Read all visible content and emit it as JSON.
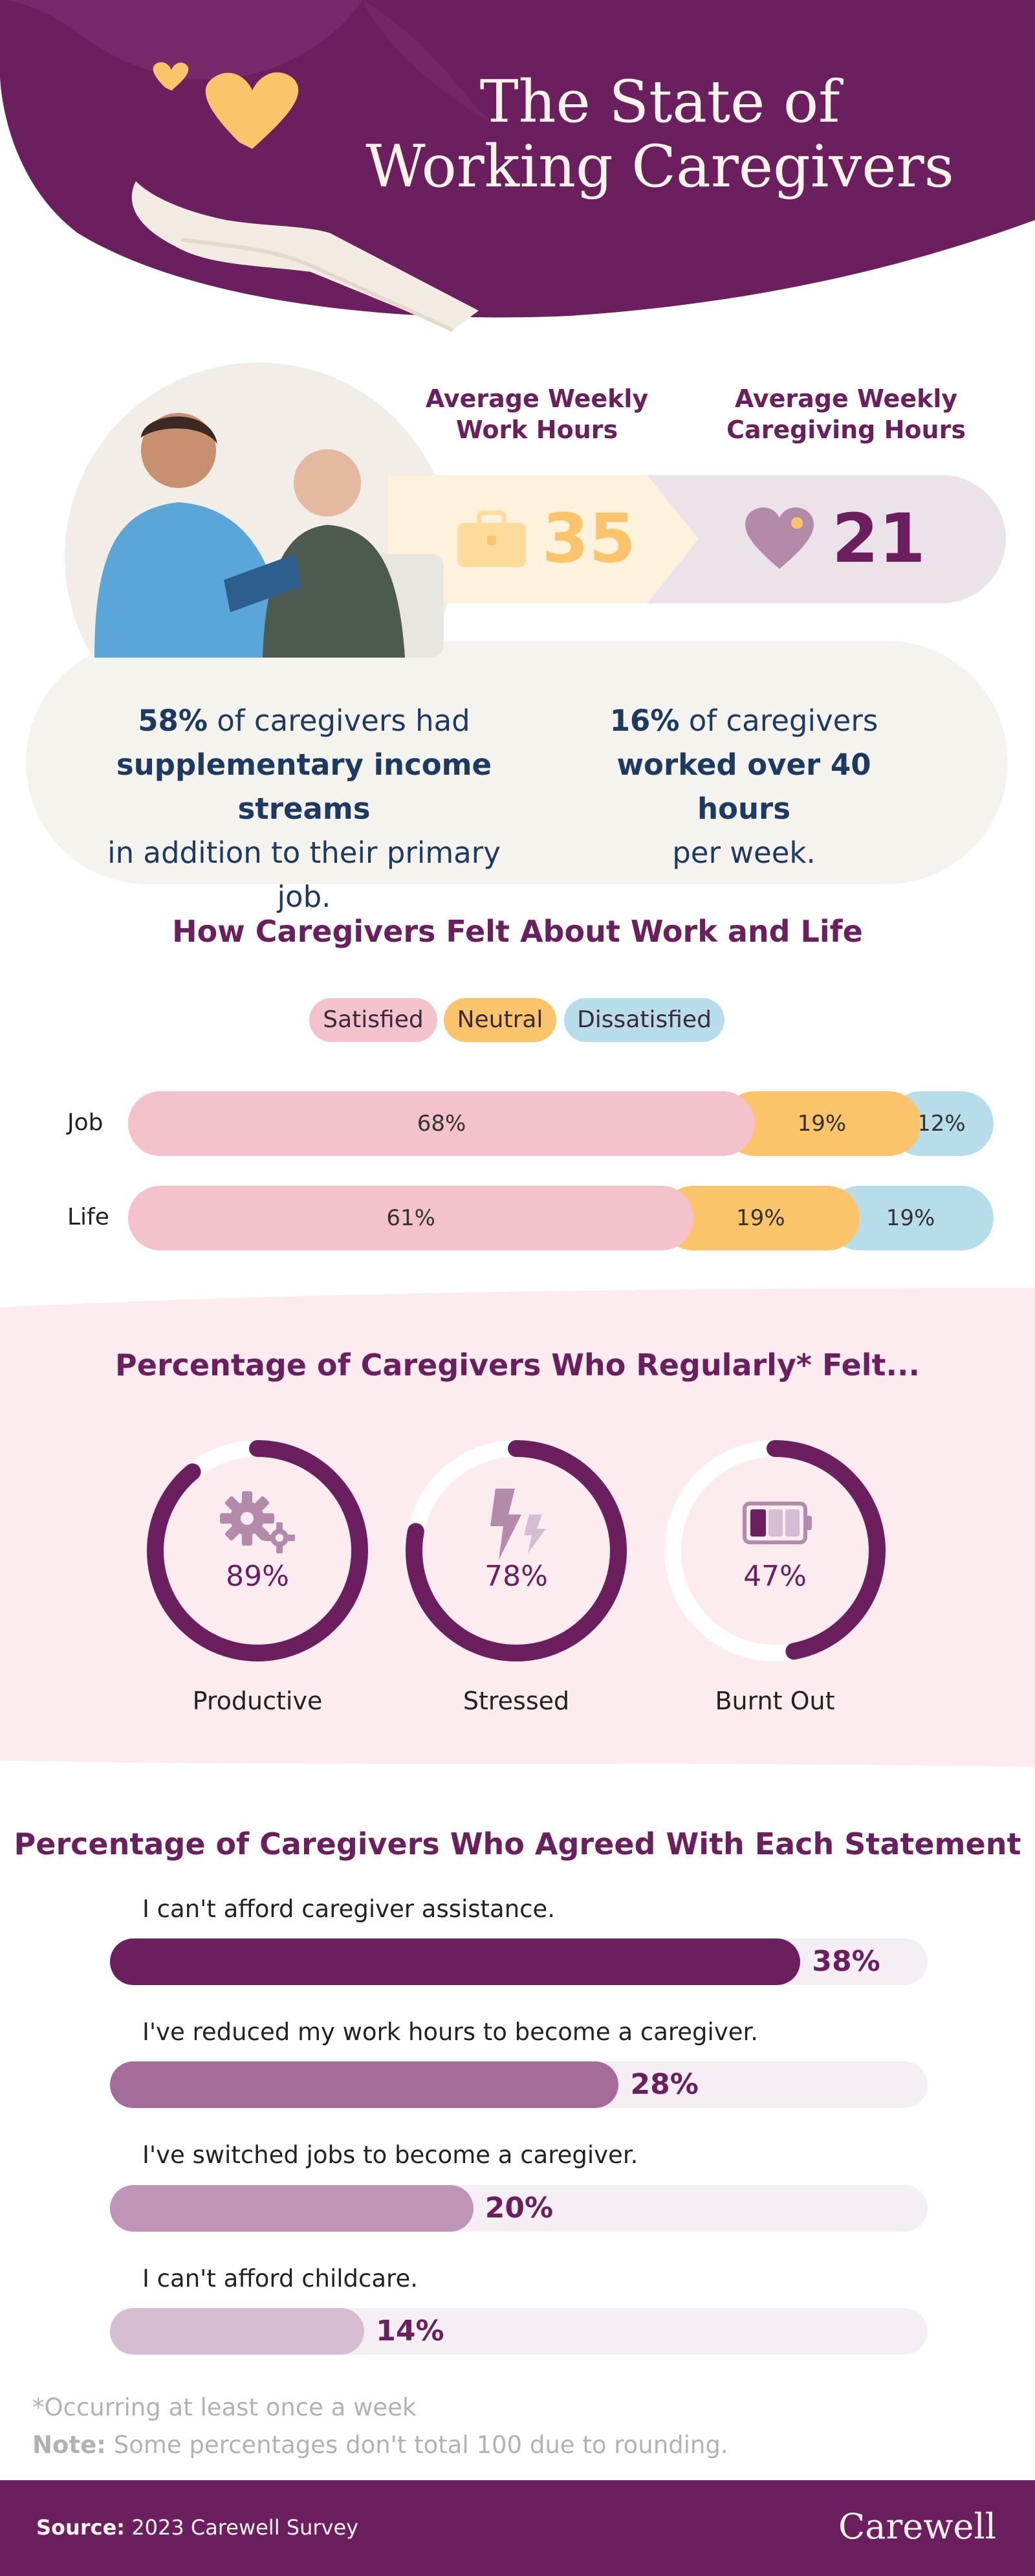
{
  "header": {
    "title_line1": "The State of",
    "title_line2": "Working Caregivers"
  },
  "stats": {
    "work": {
      "label_line1": "Average Weekly",
      "label_line2": "Work Hours",
      "value": "35",
      "icon": "briefcase-icon"
    },
    "caregiving": {
      "label_line1": "Average Weekly",
      "label_line2": "Caregiving Hours",
      "value": "21",
      "icon": "heart-icon"
    }
  },
  "callouts": {
    "left": {
      "pct": "58%",
      "text1": " of caregivers had",
      "bold": "supplementary income streams",
      "text2": "in addition to their primary job."
    },
    "right": {
      "pct": "16%",
      "text1": " of caregivers",
      "bold": "worked over 40 hours",
      "text2": "per week."
    }
  },
  "feelings": {
    "title": "How Caregivers Felt About Work and Life",
    "legend": [
      "Satisfied",
      "Neutral",
      "Dissatisfied"
    ],
    "colors": {
      "satisfied": "#f4c2cb",
      "neutral": "#fcc46a",
      "dissatisfied": "#b7dcea"
    }
  },
  "regular": {
    "title": "Percentage of Caregivers Who Regularly* Felt...",
    "items": [
      {
        "label": "Productive",
        "value": 89,
        "display": "89%",
        "icon": "gears-icon"
      },
      {
        "label": "Stressed",
        "value": 78,
        "display": "78%",
        "icon": "lightning-icon"
      },
      {
        "label": "Burnt Out",
        "value": 47,
        "display": "47%",
        "icon": "low-battery-icon"
      }
    ]
  },
  "agreement": {
    "title": "Percentage of Caregivers Who Agreed With Each Statement",
    "items": [
      {
        "statement": "I can't afford caregiver assistance.",
        "value": 38,
        "display": "38%",
        "color": "#6b1f5e"
      },
      {
        "statement": "I've reduced my work hours to become a caregiver.",
        "value": 28,
        "display": "28%",
        "color": "#a56c99"
      },
      {
        "statement": "I've switched jobs to become a caregiver.",
        "value": 20,
        "display": "20%",
        "color": "#bf95b7"
      },
      {
        "statement": "I can't afford childcare.",
        "value": 14,
        "display": "14%",
        "color": "#d6bdd2"
      }
    ]
  },
  "notes": {
    "asterisk": "*Occurring at least once a week",
    "note_label": "Note:",
    "note_text": " Some percentages don't total 100 due to rounding."
  },
  "footer": {
    "source_label": "Source:",
    "source_text": " 2023 Carewell Survey",
    "brand": "Carewell"
  },
  "chart_data": [
    {
      "type": "bar",
      "stacked": true,
      "orientation": "horizontal",
      "title": "How Caregivers Felt About Work and Life",
      "categories": [
        "Job",
        "Life"
      ],
      "series": [
        {
          "name": "Satisfied",
          "values": [
            68,
            61
          ],
          "labels": [
            "68%",
            "61%"
          ]
        },
        {
          "name": "Neutral",
          "values": [
            19,
            19
          ],
          "labels": [
            "19%",
            "19%"
          ]
        },
        {
          "name": "Dissatisfied",
          "values": [
            12,
            19
          ],
          "labels": [
            "12%",
            "19%"
          ]
        }
      ]
    },
    {
      "type": "pie",
      "title": "Percentage of Caregivers Who Regularly* Felt...",
      "categories": [
        "Productive",
        "Stressed",
        "Burnt Out"
      ],
      "values": [
        89,
        78,
        47
      ]
    },
    {
      "type": "bar",
      "orientation": "horizontal",
      "title": "Percentage of Caregivers Who Agreed With Each Statement",
      "categories": [
        "I can't afford caregiver assistance.",
        "I've reduced my work hours to become a caregiver.",
        "I've switched jobs to become a caregiver.",
        "I can't afford childcare."
      ],
      "values": [
        38,
        28,
        20,
        14
      ],
      "xlim": [
        0,
        100
      ]
    }
  ]
}
